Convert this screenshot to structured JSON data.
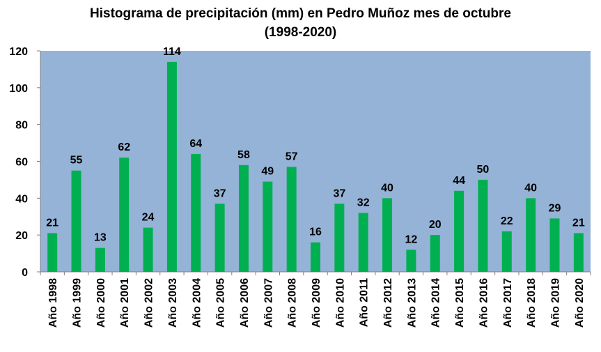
{
  "chart_data": {
    "type": "bar",
    "title": "Histograma de precipitación (mm) en Pedro Muñoz mes de octubre",
    "subtitle": "(1998-2020)",
    "xlabel": "",
    "ylabel": "",
    "ylim": [
      0,
      120
    ],
    "yticks": [
      0,
      20,
      40,
      60,
      80,
      100,
      120
    ],
    "grid": false,
    "legend": "none",
    "plot_background": "#95b3d7",
    "bar_color": "#00b050",
    "categories": [
      "Año 1998",
      "Año 1999",
      "Año 2000",
      "Año 2001",
      "Año 2002",
      "Año 2003",
      "Año 2004",
      "Año 2005",
      "Año 2006",
      "Año 2007",
      "Año 2008",
      "Año 2009",
      "Año 2010",
      "Año 2011",
      "Año 2012",
      "Año 2013",
      "Año 2014",
      "Año 2015",
      "Año 2016",
      "Año 2017",
      "Año 2018",
      "Año 2019",
      "Año 2020"
    ],
    "values": [
      21,
      55,
      13,
      62,
      24,
      114,
      64,
      37,
      58,
      49,
      57,
      16,
      37,
      32,
      40,
      12,
      20,
      44,
      50,
      22,
      40,
      29,
      21
    ]
  }
}
